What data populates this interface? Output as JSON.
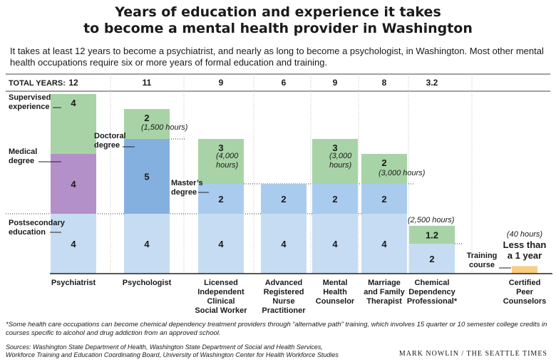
{
  "chart_data": {
    "type": "bar",
    "title_line1": "Years of education and experience it takes",
    "title_line2": "to become a mental health provider in Washington",
    "subtitle": "It takes at least 12 years to become a psychiatrist, and nearly as long to become a psychologist, in Washington. Most other mental health occupations require six or more years of formal education and training.",
    "total_label": "TOTAL YEARS:",
    "categories": [
      {
        "name": [
          "Psychiatrist"
        ],
        "total": "12",
        "segments": [
          {
            "type": "postsecondary",
            "years": 4,
            "label": "4"
          },
          {
            "type": "medical",
            "years": 4,
            "label": "4"
          },
          {
            "type": "supervised",
            "years": 4,
            "label": "4"
          }
        ]
      },
      {
        "name": [
          "Psychologist"
        ],
        "total": "11",
        "segments": [
          {
            "type": "postsecondary",
            "years": 4,
            "label": "4"
          },
          {
            "type": "doctoral",
            "years": 5,
            "label": "5"
          },
          {
            "type": "supervised",
            "years": 2,
            "label": "2",
            "note": [
              "(1,500 hours)"
            ]
          }
        ]
      },
      {
        "name": [
          "Licensed",
          "Independent",
          "Clinical",
          "Social Worker"
        ],
        "total": "9",
        "segments": [
          {
            "type": "postsecondary",
            "years": 4,
            "label": "4"
          },
          {
            "type": "masters",
            "years": 2,
            "label": "2"
          },
          {
            "type": "supervised",
            "years": 3,
            "label": "3",
            "note": [
              "(4,000",
              "hours)"
            ]
          }
        ]
      },
      {
        "name": [
          "Advanced",
          "Registered",
          "Nurse",
          "Practitioner"
        ],
        "total": "6",
        "segments": [
          {
            "type": "postsecondary",
            "years": 4,
            "label": "4"
          },
          {
            "type": "masters",
            "years": 2,
            "label": "2"
          }
        ]
      },
      {
        "name": [
          "Mental",
          "Health",
          "Counselor"
        ],
        "total": "9",
        "segments": [
          {
            "type": "postsecondary",
            "years": 4,
            "label": "4"
          },
          {
            "type": "masters",
            "years": 2,
            "label": "2"
          },
          {
            "type": "supervised",
            "years": 3,
            "label": "3",
            "note": [
              "(3,000",
              "hours)"
            ]
          }
        ]
      },
      {
        "name": [
          "Marriage",
          "and Family",
          "Therapist"
        ],
        "total": "8",
        "segments": [
          {
            "type": "postsecondary",
            "years": 4,
            "label": "4"
          },
          {
            "type": "masters",
            "years": 2,
            "label": "2"
          },
          {
            "type": "supervised",
            "years": 2,
            "label": "2",
            "note": [
              "(3,000 hours)"
            ]
          }
        ]
      },
      {
        "name": [
          "Chemical",
          "Dependency",
          "Professional*"
        ],
        "total": "3.2",
        "segments": [
          {
            "type": "postsecondary",
            "years": 2,
            "label": "2"
          },
          {
            "type": "supervised",
            "years": 1.2,
            "label": "1.2",
            "note": [
              "(2,500 hours)"
            ]
          }
        ]
      },
      {
        "name": [
          "Certified",
          "Peer",
          "Counselors"
        ],
        "total": "",
        "segments": [
          {
            "type": "training",
            "years": 0.5,
            "label": "",
            "note": [
              "(40 hours)"
            ]
          }
        ],
        "big_label": [
          "Less than",
          "a 1 year"
        ]
      }
    ],
    "stage_labels": {
      "supervised": [
        "Supervised",
        "experience"
      ],
      "medical": [
        "Medical",
        "degree"
      ],
      "postsecondary": [
        "Postsecondary",
        "education"
      ],
      "doctoral": [
        "Doctoral",
        "degree"
      ],
      "masters": [
        "Master’s",
        "degree"
      ],
      "training": [
        "Training",
        "course"
      ]
    },
    "colors": {
      "postsecondary": "#c6dcf2",
      "masters": "#a9ccee",
      "doctoral": "#84b0e0",
      "medical": "#b390c8",
      "supervised": "#a8d3a6",
      "training": "#f9cd82"
    },
    "ylim": [
      0,
      12
    ]
  },
  "footnote": "*Some health care occupations can become chemical dependency treatment providers through “alternative path” training, which involves 15 quarter or 10 semester college credits in courses specific to alcohol and drug addiction from an approved school.",
  "sources_line1": "Sources: Washington State Department of Health, Washington State Department of Social and Health Services,",
  "sources_line2": "Workforce Training and Education Coordinating Board, University of Washington Center for Health Workforce Studies",
  "credit": "MARK NOWLIN / THE SEATTLE TIMES"
}
